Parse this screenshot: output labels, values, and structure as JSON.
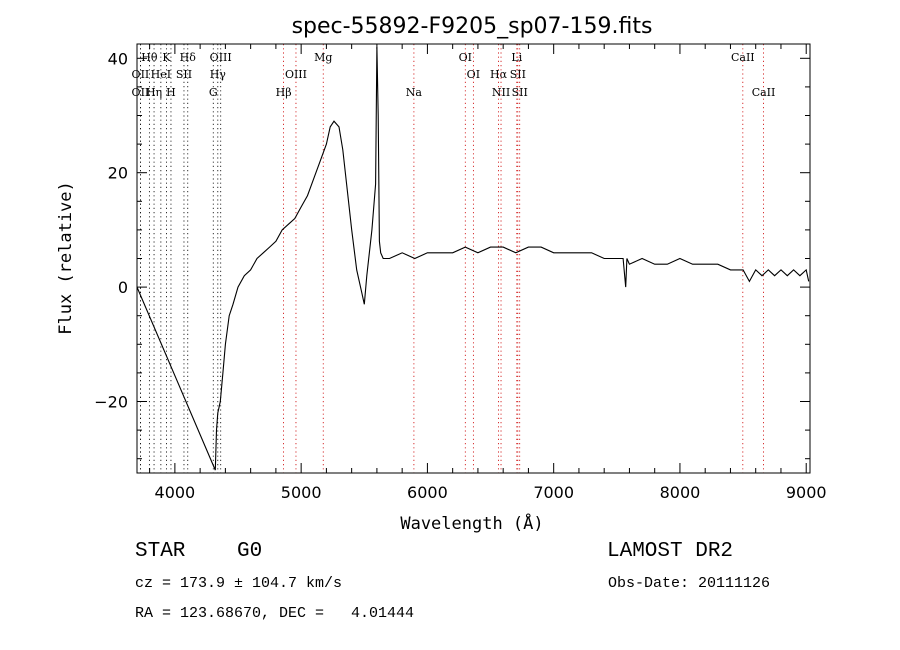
{
  "chart_data": {
    "type": "line",
    "title": "spec-55892-F9205_sp07-159.fits",
    "xlabel": "Wavelength (Å)",
    "ylabel": "Flux (relative)",
    "xlim": [
      3700,
      9030
    ],
    "ylim": [
      -32.5,
      42.5
    ],
    "xticks": [
      4000,
      5000,
      6000,
      7000,
      8000,
      9000
    ],
    "yticks": [
      -20,
      0,
      20,
      40
    ],
    "grid": false,
    "series": [
      {
        "color": "#000000",
        "x": [
          3700,
          4320,
          4330,
          4340,
          4360,
          4380,
          4400,
          4430,
          4460,
          4500,
          4550,
          4600,
          4650,
          4700,
          4750,
          4800,
          4850,
          4900,
          4950,
          5000,
          5050,
          5100,
          5150,
          5200,
          5230,
          5260,
          5300,
          5330,
          5360,
          5400,
          5440,
          5480,
          5500,
          5520,
          5560,
          5590,
          5600,
          5610,
          5620,
          5630,
          5650,
          5700,
          5800,
          5900,
          6000,
          6100,
          6200,
          6300,
          6400,
          6500,
          6600,
          6700,
          6800,
          6900,
          7000,
          7100,
          7200,
          7300,
          7400,
          7500,
          7550,
          7570,
          7580,
          7600,
          7700,
          7800,
          7900,
          8000,
          8100,
          8200,
          8300,
          8400,
          8500,
          8550,
          8600,
          8650,
          8700,
          8750,
          8800,
          8850,
          8900,
          8950,
          9000,
          9020
        ],
        "y": [
          0,
          -32,
          -25,
          -22,
          -20,
          -15,
          -10,
          -5,
          -3,
          0,
          2,
          3,
          5,
          6,
          7,
          8,
          10,
          11,
          12,
          14,
          16,
          19,
          22,
          25,
          28,
          29,
          28,
          24,
          18,
          10,
          3,
          -1,
          -3,
          2,
          10,
          18,
          42,
          30,
          8,
          6,
          5,
          5,
          6,
          5,
          6,
          6,
          6,
          7,
          6,
          7,
          7,
          6,
          7,
          7,
          6,
          6,
          6,
          6,
          5,
          5,
          5,
          0,
          5,
          4,
          5,
          4,
          4,
          5,
          4,
          4,
          4,
          3,
          3,
          1,
          3,
          2,
          3,
          2,
          3,
          2,
          3,
          2,
          3,
          1
        ]
      }
    ],
    "lines": [
      {
        "name": "Hθ",
        "wavelength": 3798,
        "color": "#000000",
        "row": 1
      },
      {
        "name": "OII",
        "wavelength": 3727,
        "color": "#000000",
        "row": 2
      },
      {
        "name": "OII",
        "wavelength": 3727,
        "color": "#000000",
        "row": 3
      },
      {
        "name": "Hη",
        "wavelength": 3835,
        "color": "#000000",
        "row": 3
      },
      {
        "name": "K",
        "wavelength": 3934,
        "color": "#000000",
        "row": 1
      },
      {
        "name": "HeI",
        "wavelength": 3889,
        "color": "#000000",
        "row": 2
      },
      {
        "name": "H",
        "wavelength": 3969,
        "color": "#000000",
        "row": 3
      },
      {
        "name": "Hδ",
        "wavelength": 4102,
        "color": "#000000",
        "row": 1
      },
      {
        "name": "SII",
        "wavelength": 4072,
        "color": "#000000",
        "row": 2
      },
      {
        "name": "OIII",
        "wavelength": 4363,
        "color": "#000000",
        "row": 1
      },
      {
        "name": "Hγ",
        "wavelength": 4340,
        "color": "#000000",
        "row": 2
      },
      {
        "name": "G",
        "wavelength": 4304,
        "color": "#000000",
        "row": 3
      },
      {
        "name": "Hβ",
        "wavelength": 4861,
        "color": "#cc0000",
        "row": 3
      },
      {
        "name": "OIII",
        "wavelength": 4959,
        "color": "#cc0000",
        "row": 2
      },
      {
        "name": "Mg",
        "wavelength": 5175,
        "color": "#cc0000",
        "row": 1
      },
      {
        "name": "Na",
        "wavelength": 5893,
        "color": "#cc0000",
        "row": 3
      },
      {
        "name": "OI",
        "wavelength": 6300,
        "color": "#cc0000",
        "row": 1
      },
      {
        "name": "OI",
        "wavelength": 6364,
        "color": "#cc0000",
        "row": 2
      },
      {
        "name": "Hα",
        "wavelength": 6563,
        "color": "#cc0000",
        "row": 2
      },
      {
        "name": "NII",
        "wavelength": 6583,
        "color": "#cc0000",
        "row": 3
      },
      {
        "name": "Li",
        "wavelength": 6708,
        "color": "#cc0000",
        "row": 1
      },
      {
        "name": "SII",
        "wavelength": 6716,
        "color": "#cc0000",
        "row": 2
      },
      {
        "name": "SII",
        "wavelength": 6731,
        "color": "#cc0000",
        "row": 3
      },
      {
        "name": "CaII",
        "wavelength": 8498,
        "color": "#cc0000",
        "row": 1
      },
      {
        "name": "CaII",
        "wavelength": 8662,
        "color": "#cc0000",
        "row": 3
      }
    ]
  },
  "info": {
    "object_type": "STAR",
    "subclass": "G0",
    "survey": "LAMOST DR2",
    "redshift_line": "cz = 173.9 ± 104.7 km/s",
    "obs_date_line": "Obs-Date: 20111126",
    "coords_line": "RA = 123.68670, DEC =   4.01444"
  }
}
